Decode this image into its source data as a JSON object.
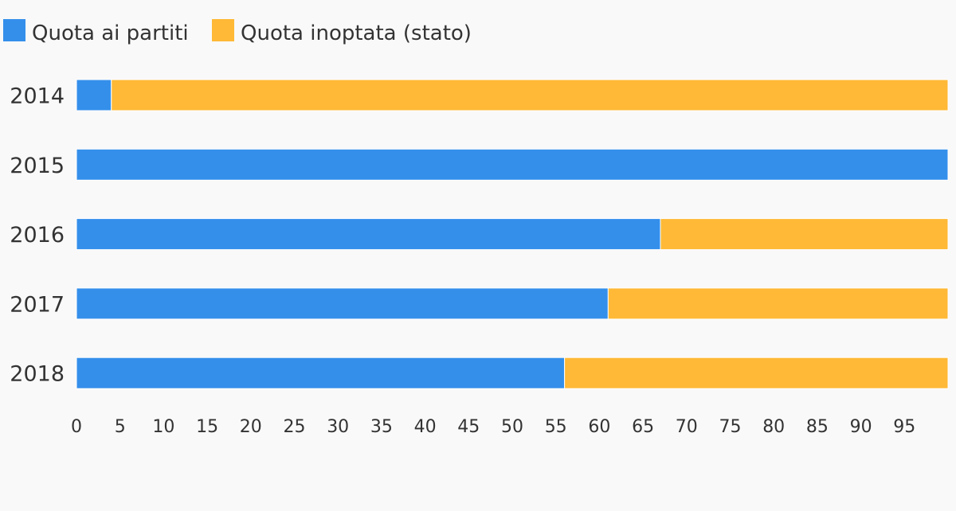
{
  "chart_data": {
    "type": "bar",
    "orientation": "horizontal",
    "stacked": true,
    "title": "",
    "xlabel": "",
    "ylabel": "",
    "categories": [
      "2014",
      "2015",
      "2016",
      "2017",
      "2018"
    ],
    "series": [
      {
        "name": "Quota ai partiti",
        "color": "#348feb",
        "values": [
          4,
          100,
          67,
          61,
          56
        ]
      },
      {
        "name": "Quota inoptata (stato)",
        "color": "#ffb936",
        "values": [
          96,
          0,
          33,
          39,
          44
        ]
      }
    ],
    "xlim": [
      0,
      100
    ],
    "xticks": [
      0,
      5,
      10,
      15,
      20,
      25,
      30,
      35,
      40,
      45,
      50,
      55,
      60,
      65,
      70,
      75,
      80,
      85,
      90,
      95
    ],
    "grid": false,
    "legend": "top-left"
  }
}
